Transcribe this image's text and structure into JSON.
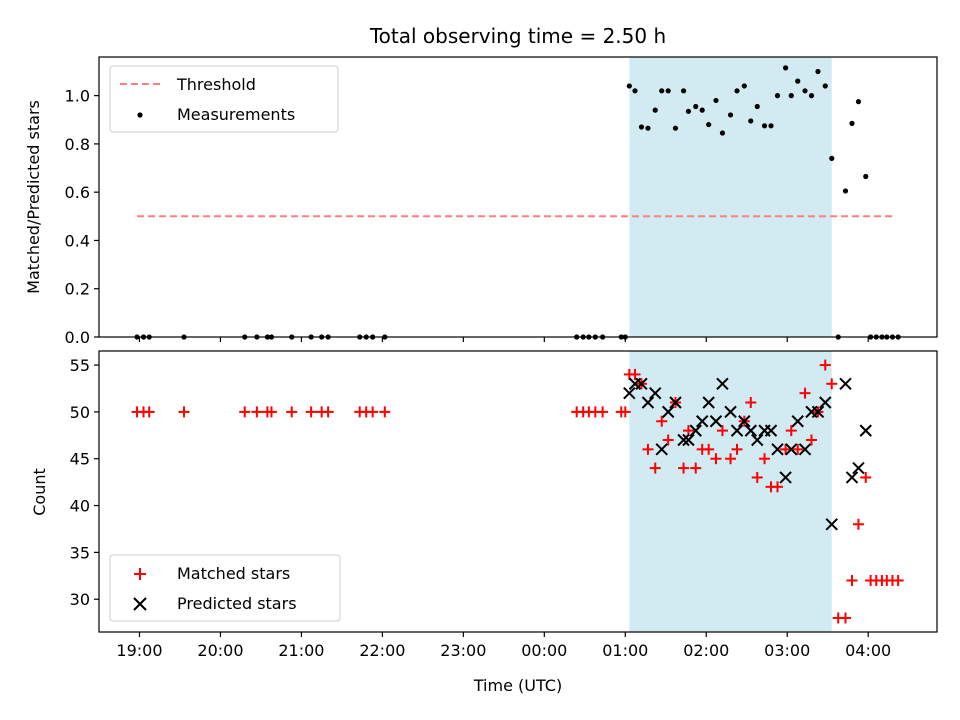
{
  "chart_data": [
    {
      "type": "scatter",
      "title": "Total observing time = 2.50 h",
      "xlabel": "",
      "ylabel": "Matched/Predicted stars",
      "ylim": [
        0,
        1.16
      ],
      "xlim_hours": [
        18.5,
        28.85
      ],
      "yticks": [
        0.0,
        0.2,
        0.4,
        0.6,
        0.8,
        1.0
      ],
      "ytick_labels": [
        "0.0",
        "0.2",
        "0.4",
        "0.6",
        "0.8",
        "1.0"
      ],
      "shaded_region_hours": [
        25.05,
        27.55
      ],
      "threshold": {
        "name": "Threshold",
        "value": 0.5,
        "x_range_hours": [
          18.97,
          28.33
        ],
        "color": "#ff7f7f"
      },
      "series": [
        {
          "name": "Measurements",
          "color": "#000000",
          "points": [
            [
              18.97,
              0
            ],
            [
              19.05,
              0
            ],
            [
              19.12,
              0
            ],
            [
              19.55,
              0
            ],
            [
              20.3,
              0
            ],
            [
              20.45,
              0
            ],
            [
              20.58,
              0
            ],
            [
              20.63,
              0
            ],
            [
              20.88,
              0
            ],
            [
              21.12,
              0
            ],
            [
              21.25,
              0
            ],
            [
              21.33,
              0
            ],
            [
              21.72,
              0
            ],
            [
              21.8,
              0
            ],
            [
              21.88,
              0
            ],
            [
              22.03,
              0
            ],
            [
              24.4,
              0
            ],
            [
              24.48,
              0
            ],
            [
              24.55,
              0
            ],
            [
              24.63,
              0
            ],
            [
              24.72,
              0
            ],
            [
              24.95,
              0
            ],
            [
              25.0,
              0
            ],
            [
              25.05,
              1.04
            ],
            [
              25.12,
              1.02
            ],
            [
              25.2,
              0.87
            ],
            [
              25.28,
              0.865
            ],
            [
              25.37,
              0.94
            ],
            [
              25.45,
              1.02
            ],
            [
              25.53,
              1.02
            ],
            [
              25.62,
              0.865
            ],
            [
              25.72,
              1.02
            ],
            [
              25.78,
              0.935
            ],
            [
              25.87,
              0.955
            ],
            [
              25.95,
              0.94
            ],
            [
              26.03,
              0.88
            ],
            [
              26.12,
              0.98
            ],
            [
              26.2,
              0.845
            ],
            [
              26.3,
              0.92
            ],
            [
              26.38,
              1.02
            ],
            [
              26.47,
              1.04
            ],
            [
              26.55,
              0.895
            ],
            [
              26.63,
              0.955
            ],
            [
              26.72,
              0.875
            ],
            [
              26.8,
              0.875
            ],
            [
              26.88,
              1.0
            ],
            [
              26.98,
              1.115
            ],
            [
              27.05,
              1.0
            ],
            [
              27.13,
              1.06
            ],
            [
              27.22,
              1.02
            ],
            [
              27.3,
              1.0
            ],
            [
              27.38,
              1.1
            ],
            [
              27.47,
              1.04
            ],
            [
              27.55,
              0.74
            ],
            [
              27.63,
              0
            ],
            [
              27.72,
              0.605
            ],
            [
              27.8,
              0.885
            ],
            [
              27.88,
              0.975
            ],
            [
              27.97,
              0.665
            ],
            [
              28.03,
              0
            ],
            [
              28.1,
              0
            ],
            [
              28.17,
              0
            ],
            [
              28.23,
              0
            ],
            [
              28.3,
              0
            ],
            [
              28.37,
              0
            ]
          ]
        }
      ]
    },
    {
      "type": "scatter",
      "title": "",
      "xlabel": "Time (UTC)",
      "ylabel": "Count",
      "ylim": [
        26.5,
        56.5
      ],
      "xlim_hours": [
        18.5,
        28.85
      ],
      "yticks": [
        30,
        35,
        40,
        45,
        50,
        55
      ],
      "ytick_labels": [
        "30",
        "35",
        "40",
        "45",
        "50",
        "55"
      ],
      "shaded_region_hours": [
        25.05,
        27.55
      ],
      "series": [
        {
          "name": "Matched stars",
          "marker": "plus",
          "color": "#ff0000",
          "points": [
            [
              18.97,
              50
            ],
            [
              19.05,
              50
            ],
            [
              19.12,
              50
            ],
            [
              19.55,
              50
            ],
            [
              20.3,
              50
            ],
            [
              20.45,
              50
            ],
            [
              20.58,
              50
            ],
            [
              20.63,
              50
            ],
            [
              20.88,
              50
            ],
            [
              21.12,
              50
            ],
            [
              21.25,
              50
            ],
            [
              21.33,
              50
            ],
            [
              21.72,
              50
            ],
            [
              21.8,
              50
            ],
            [
              21.88,
              50
            ],
            [
              22.03,
              50
            ],
            [
              24.4,
              50
            ],
            [
              24.48,
              50
            ],
            [
              24.55,
              50
            ],
            [
              24.63,
              50
            ],
            [
              24.72,
              50
            ],
            [
              24.95,
              50
            ],
            [
              25.0,
              50
            ],
            [
              25.05,
              54
            ],
            [
              25.12,
              54
            ],
            [
              25.2,
              53
            ],
            [
              25.28,
              46
            ],
            [
              25.37,
              44
            ],
            [
              25.45,
              49
            ],
            [
              25.53,
              47
            ],
            [
              25.62,
              51
            ],
            [
              25.72,
              44
            ],
            [
              25.78,
              48
            ],
            [
              25.87,
              44
            ],
            [
              25.95,
              46
            ],
            [
              26.03,
              46
            ],
            [
              26.12,
              45
            ],
            [
              26.2,
              48
            ],
            [
              26.3,
              45
            ],
            [
              26.38,
              46
            ],
            [
              26.47,
              49
            ],
            [
              26.55,
              51
            ],
            [
              26.63,
              43
            ],
            [
              26.72,
              45
            ],
            [
              26.8,
              42
            ],
            [
              26.88,
              42
            ],
            [
              26.98,
              46
            ],
            [
              27.05,
              48
            ],
            [
              27.13,
              46
            ],
            [
              27.22,
              52
            ],
            [
              27.3,
              47
            ],
            [
              27.38,
              50
            ],
            [
              27.47,
              55
            ],
            [
              27.55,
              53
            ],
            [
              27.63,
              28
            ],
            [
              27.72,
              28
            ],
            [
              27.8,
              32
            ],
            [
              27.88,
              38
            ],
            [
              27.97,
              43
            ],
            [
              28.03,
              32
            ],
            [
              28.1,
              32
            ],
            [
              28.17,
              32
            ],
            [
              28.23,
              32
            ],
            [
              28.3,
              32
            ],
            [
              28.37,
              32
            ]
          ]
        },
        {
          "name": "Predicted stars",
          "marker": "x",
          "color": "#000000",
          "points": [
            [
              25.05,
              52
            ],
            [
              25.12,
              53
            ],
            [
              25.2,
              53
            ],
            [
              25.28,
              51
            ],
            [
              25.37,
              52
            ],
            [
              25.45,
              46
            ],
            [
              25.53,
              50
            ],
            [
              25.62,
              51
            ],
            [
              25.72,
              47
            ],
            [
              25.78,
              47
            ],
            [
              25.87,
              48
            ],
            [
              25.95,
              49
            ],
            [
              26.03,
              51
            ],
            [
              26.12,
              49
            ],
            [
              26.2,
              53
            ],
            [
              26.3,
              50
            ],
            [
              26.38,
              48
            ],
            [
              26.47,
              49
            ],
            [
              26.55,
              48
            ],
            [
              26.63,
              47
            ],
            [
              26.72,
              48
            ],
            [
              26.8,
              48
            ],
            [
              26.88,
              46
            ],
            [
              26.98,
              43
            ],
            [
              27.05,
              46
            ],
            [
              27.13,
              49
            ],
            [
              27.22,
              46
            ],
            [
              27.3,
              50
            ],
            [
              27.38,
              50
            ],
            [
              27.47,
              51
            ],
            [
              27.55,
              38
            ],
            [
              27.72,
              53
            ],
            [
              27.8,
              43
            ],
            [
              27.88,
              44
            ],
            [
              27.97,
              48
            ]
          ]
        }
      ]
    }
  ],
  "x_axis": {
    "tick_hours": [
      19,
      20,
      21,
      22,
      23,
      24,
      25,
      26,
      27,
      28
    ],
    "tick_labels": [
      "19:00",
      "20:00",
      "21:00",
      "22:00",
      "23:00",
      "00:00",
      "01:00",
      "02:00",
      "03:00",
      "04:00"
    ]
  },
  "shade_color": "#add8e6"
}
